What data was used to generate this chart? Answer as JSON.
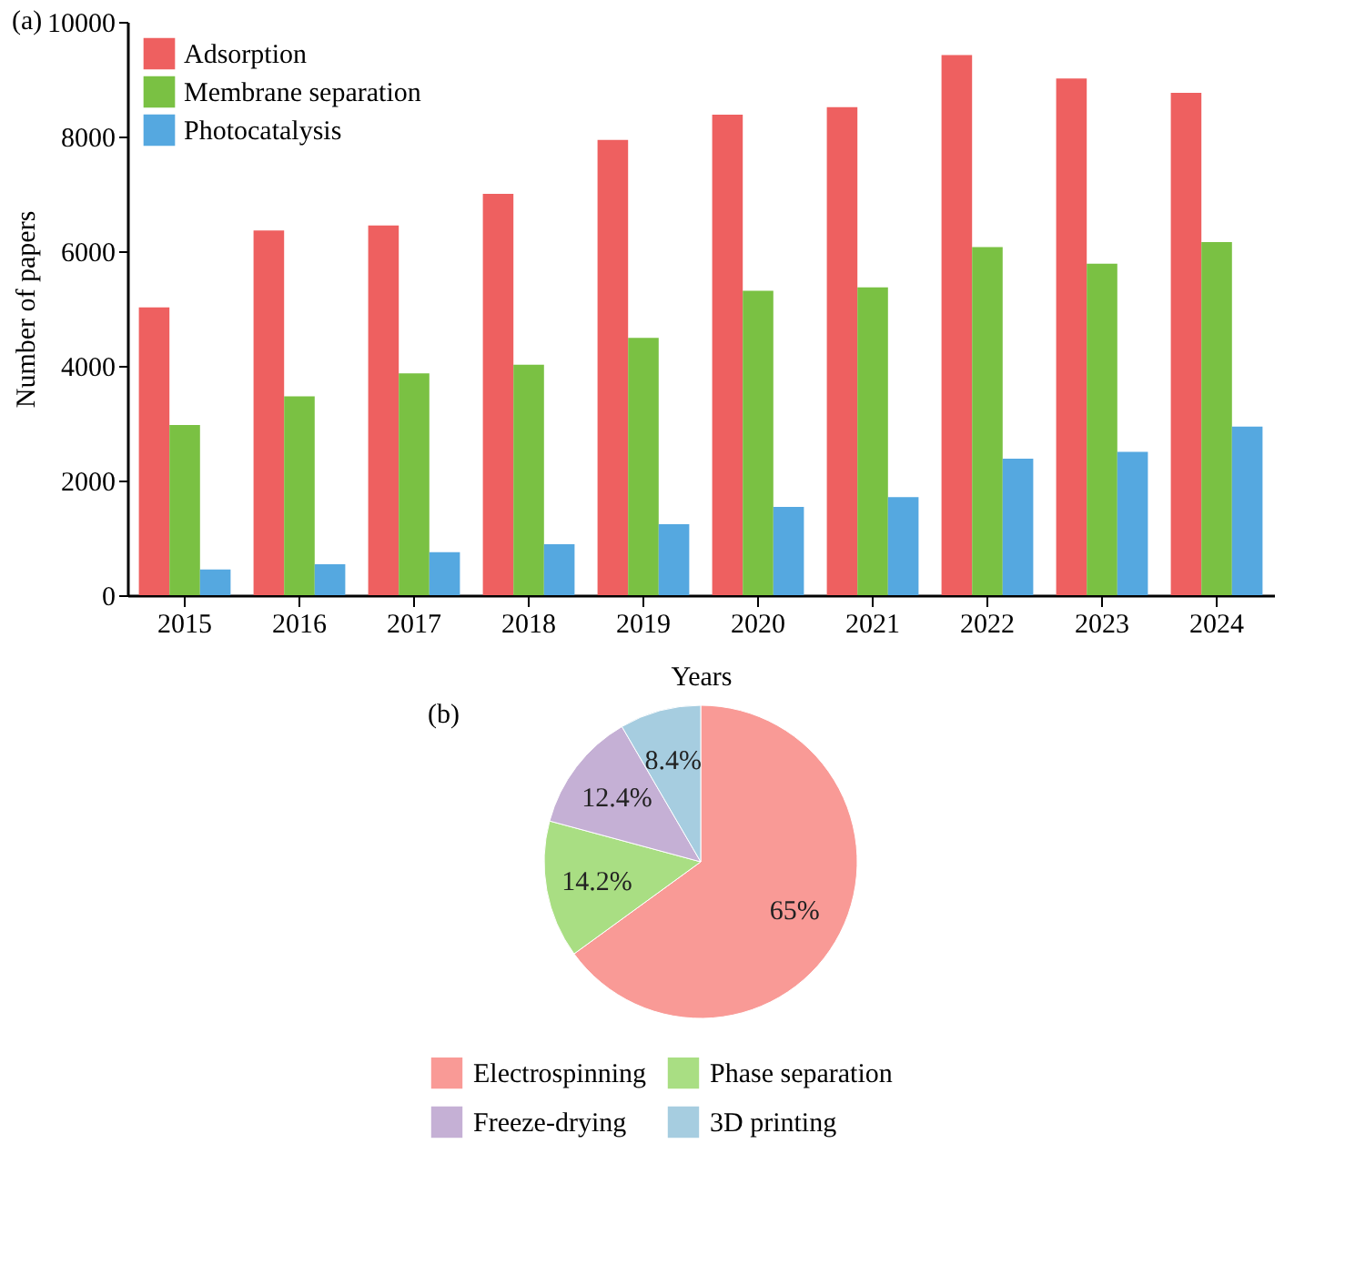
{
  "chart_data": [
    {
      "type": "bar",
      "title": "(a)",
      "xlabel": "Years",
      "ylabel": "Number of papers",
      "categories": [
        "2015",
        "2016",
        "2017",
        "2018",
        "2019",
        "2020",
        "2021",
        "2022",
        "2023",
        "2024"
      ],
      "ylim": [
        0,
        10000
      ],
      "yticks": [
        0,
        2000,
        4000,
        6000,
        8000,
        10000
      ],
      "legend": "top left",
      "grid": false,
      "series": [
        {
          "name": "Adsorption",
          "color": "#ee6060",
          "values": [
            5020,
            6360,
            6450,
            7000,
            7940,
            8380,
            8510,
            9420,
            9010,
            8760
          ]
        },
        {
          "name": "Membrane separation",
          "color": "#7ac143",
          "values": [
            2970,
            3470,
            3870,
            4020,
            4490,
            5310,
            5370,
            6070,
            5780,
            6160
          ]
        },
        {
          "name": "Photocatalysis",
          "color": "#55a8e0",
          "values": [
            450,
            540,
            750,
            890,
            1240,
            1540,
            1710,
            2380,
            2500,
            2940
          ]
        }
      ]
    },
    {
      "type": "pie",
      "title": "(b)",
      "categories": [
        "Electrospinning",
        "Phase separation",
        "Freeze-drying",
        "3D printing"
      ],
      "values": [
        65,
        14.2,
        12.4,
        8.4
      ],
      "value_labels": [
        "65%",
        "14.2%",
        "12.4%",
        "8.4%"
      ],
      "colors": [
        "#f99a96",
        "#a9de83",
        "#c5b0d5",
        "#a6cde0"
      ],
      "legend": "bottom"
    }
  ]
}
